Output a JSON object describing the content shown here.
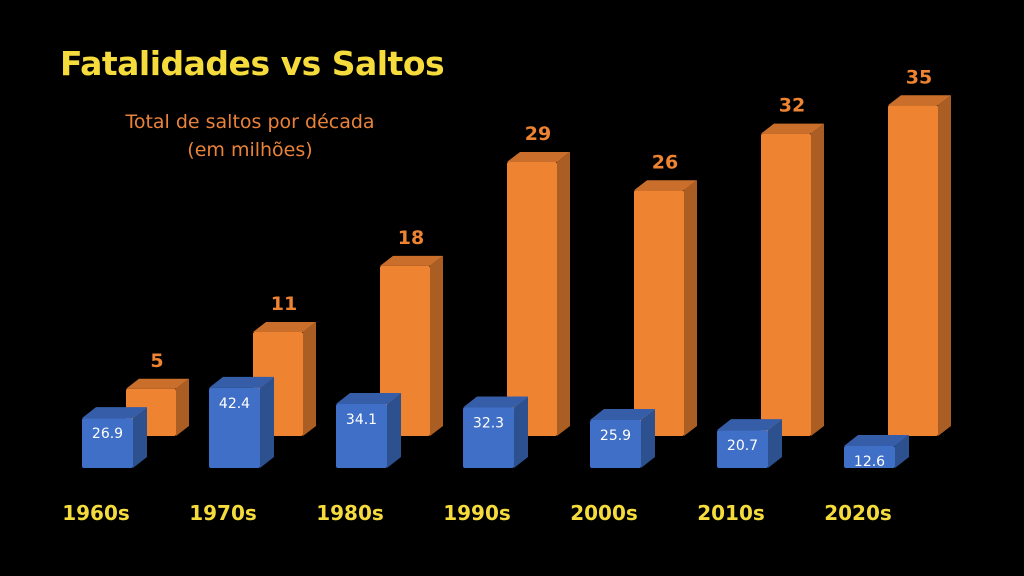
{
  "chart_data": {
    "type": "bar",
    "title": "Fatalidades vs Saltos",
    "subtitle_line1": "Total de saltos por década",
    "subtitle_line2": "(em milhões)",
    "categories": [
      "1960s",
      "1970s",
      "1980s",
      "1990s",
      "2000s",
      "2010s",
      "2020s"
    ],
    "series": [
      {
        "values": [
          26.9,
          42.4,
          34.1,
          32.3,
          25.9,
          20.7,
          12.6
        ],
        "color": "#3f6fc6"
      },
      {
        "values": [
          5,
          11,
          18,
          29,
          26,
          32,
          35
        ],
        "color": "#ee8332"
      }
    ],
    "style": "3d-column",
    "grid": false,
    "legend": "none",
    "colors": {
      "background": "#000000",
      "title": "#f5dc3c",
      "subtitle": "#e9823a",
      "category_labels": "#f5dc3c",
      "orange_labels": "#ee8332",
      "blue_labels": "#ffffff"
    }
  }
}
